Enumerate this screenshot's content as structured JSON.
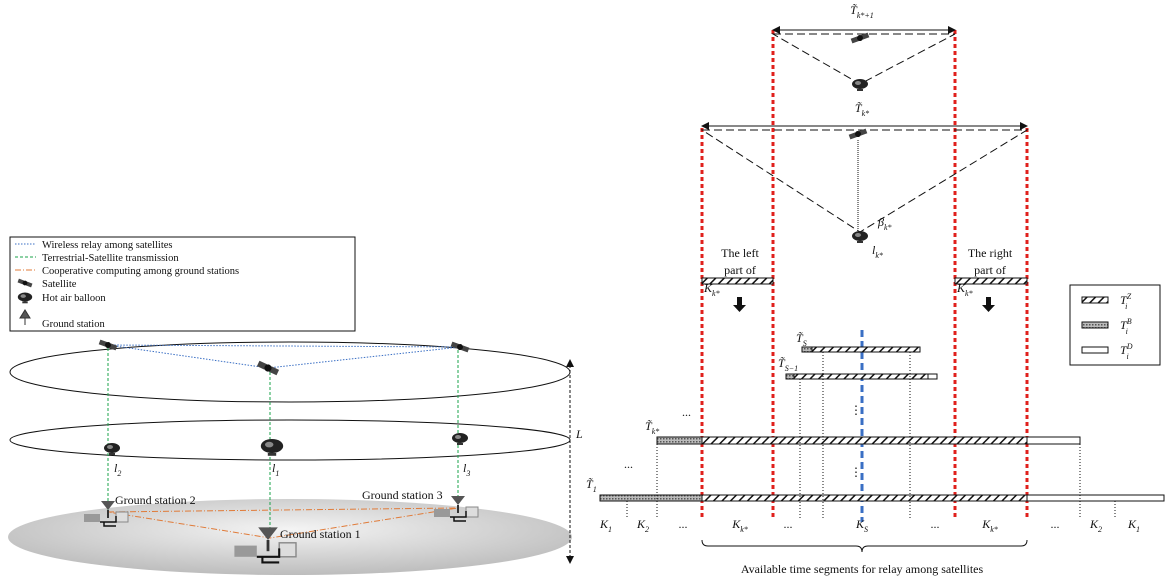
{
  "left": {
    "legend": [
      "Wireless relay among satellites",
      "Terrestrial-Satellite transmission",
      "Cooperative computing among ground stations",
      "Satellite",
      "Hot air balloon",
      "Ground station"
    ],
    "altitude_label": "L",
    "link_labels": [
      {
        "base": "l",
        "sub": "2"
      },
      {
        "base": "l",
        "sub": "1"
      },
      {
        "base": "l",
        "sub": "3"
      }
    ],
    "ground_stations": [
      "Ground station 2",
      "Ground station 1",
      "Ground station 3"
    ]
  },
  "right": {
    "windows": [
      {
        "base": "T̃",
        "sub": "k*+1"
      },
      {
        "base": "T̃",
        "sub": "k*"
      }
    ],
    "angle": {
      "base": "β",
      "sub": "k*"
    },
    "distance": {
      "base": "l",
      "sub": "k*"
    },
    "left_part": {
      "lines": [
        "The left",
        "part of"
      ],
      "base": "K",
      "sub": "k*"
    },
    "right_part": {
      "lines": [
        "The right",
        "part      of"
      ],
      "base": "K",
      "sub": "k*"
    },
    "rows": [
      {
        "base": "T̃",
        "sub": "S"
      },
      {
        "base": "T̃",
        "sub": "S−1"
      },
      {
        "base": "T̃",
        "sub": "k*"
      },
      {
        "base": "T̃",
        "sub": "1"
      }
    ],
    "ellipsis": "...",
    "vdots": "⋮",
    "segments": [
      {
        "base": "K",
        "sub": "1"
      },
      {
        "base": "K",
        "sub": "2"
      },
      "...",
      {
        "base": "K",
        "sub": "k*"
      },
      "...",
      {
        "base": "K",
        "sub": "S"
      },
      "...",
      {
        "base": "K",
        "sub": "k*"
      },
      "...",
      {
        "base": "K",
        "sub": "2"
      },
      {
        "base": "K",
        "sub": "1"
      }
    ],
    "caption": "Available time segments for relay among satellites",
    "legend": [
      {
        "base": "T",
        "sup": "Z",
        "sub": "i"
      },
      {
        "base": "T",
        "sup": "B",
        "sub": "i"
      },
      {
        "base": "T",
        "sup": "D",
        "sub": "i"
      }
    ]
  }
}
